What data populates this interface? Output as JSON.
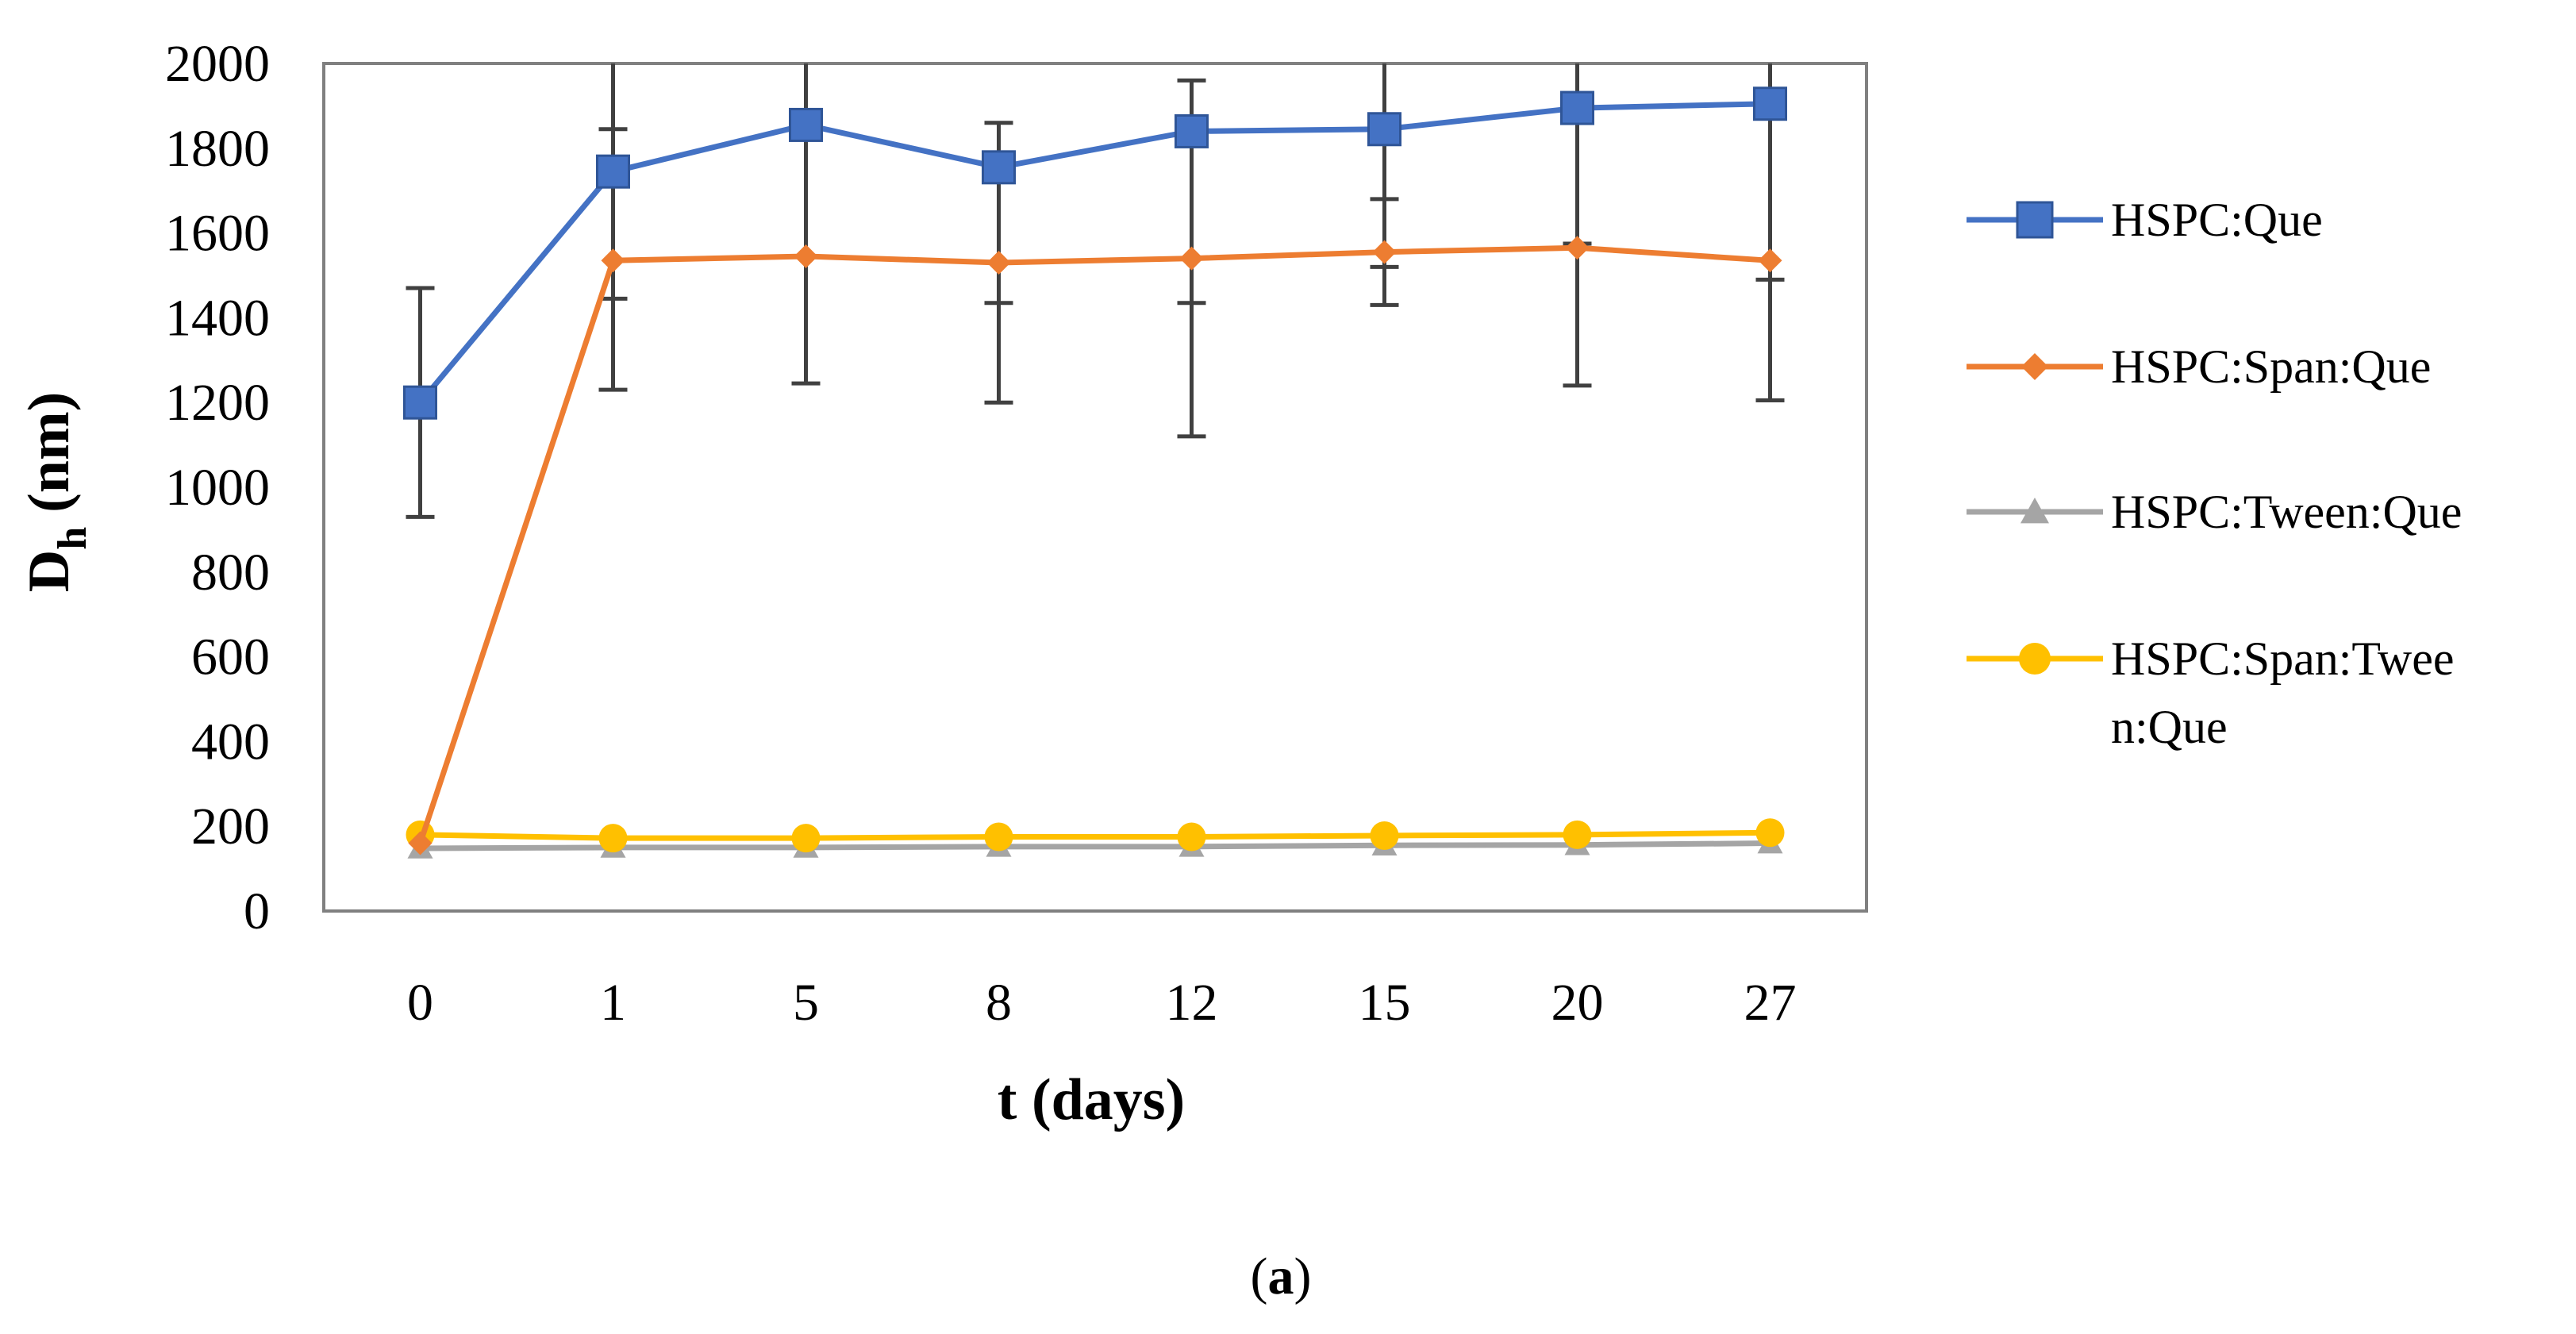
{
  "chart_data": {
    "type": "line",
    "title": "",
    "xlabel": "t (days)",
    "ylabel": "D",
    "ylabel_sub": "h",
    "ylabel_units": "(nm)",
    "categories": [
      "0",
      "1",
      "5",
      "8",
      "12",
      "15",
      "20",
      "27"
    ],
    "ylim": [
      0,
      2000
    ],
    "yticks": [
      "0",
      "200",
      "400",
      "600",
      "800",
      "1000",
      "1200",
      "1400",
      "1600",
      "1800",
      "2000"
    ],
    "grid": false,
    "legend_position": "right",
    "series": [
      {
        "name": "HSPC:Que",
        "color": "#4472C4",
        "marker": "square",
        "values": [
          1200,
          1745,
          1855,
          1755,
          1840,
          1845,
          1895,
          1905
        ],
        "error_lower": [
          930,
          1445,
          1245,
          1435,
          1435,
          1520,
          1575,
          1490
        ],
        "error_upper": [
          1470,
          2000,
          2000,
          1860,
          1960,
          2000,
          2000,
          2000
        ]
      },
      {
        "name": "HSPC:Span:Que",
        "color": "#ED7D31",
        "marker": "diamond",
        "values": [
          160,
          1535,
          1545,
          1530,
          1540,
          1555,
          1565,
          1535
        ],
        "error_lower": [
          null,
          1230,
          null,
          1200,
          1120,
          1430,
          1240,
          1205
        ],
        "error_upper": [
          null,
          1845,
          null,
          null,
          null,
          1680,
          null,
          null
        ]
      },
      {
        "name": "HSPC:Tween:Que",
        "color": "#A5A5A5",
        "marker": "triangle",
        "values": [
          148,
          150,
          150,
          152,
          152,
          155,
          156,
          160
        ]
      },
      {
        "name": "HSPC:Span:Tween:Que",
        "color": "#FFC000",
        "marker": "circle",
        "values": [
          180,
          172,
          172,
          175,
          175,
          178,
          180,
          185
        ]
      }
    ],
    "legend_lines": [
      [
        "HSPC:Que"
      ],
      [
        "HSPC:Span:Que"
      ],
      [
        "HSPC:Tween:Que"
      ],
      [
        "HSPC:Span:Twee",
        "n:Que"
      ]
    ],
    "caption": "(a)",
    "caption_letter": "a"
  }
}
